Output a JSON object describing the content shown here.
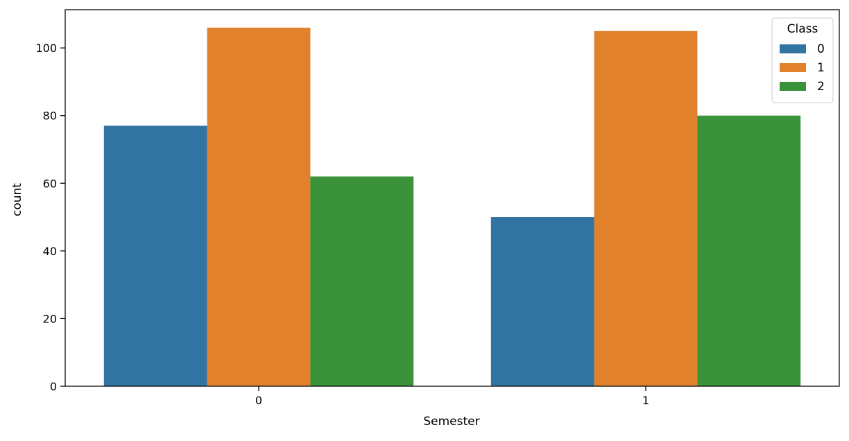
{
  "chart_data": {
    "type": "bar",
    "title": "",
    "xlabel": "Semester",
    "ylabel": "count",
    "categories": [
      "0",
      "1"
    ],
    "ylim": [
      0,
      111.3
    ],
    "yticks": [
      0,
      20,
      40,
      60,
      80,
      100
    ],
    "grid": false,
    "legend": {
      "title": "Class",
      "placement": "top-right"
    },
    "series": [
      {
        "name": "0",
        "color": "#3274a1",
        "values": [
          77,
          50
        ]
      },
      {
        "name": "1",
        "color": "#e1812c",
        "values": [
          106,
          105
        ]
      },
      {
        "name": "2",
        "color": "#3a923a",
        "values": [
          62,
          80
        ]
      }
    ]
  }
}
